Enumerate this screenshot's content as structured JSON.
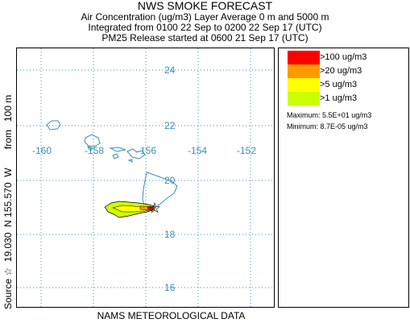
{
  "header": {
    "title": "NWS SMOKE FORECAST",
    "line2": "Air Concentration (ug/m3) Layer Average    0 m and  5000 m",
    "line3": "Integrated from 0100 22 Sep to 0200 22 Sep 17 (UTC)",
    "line4": "PM25 Release started at 0600 21 Sep 17 (UTC)"
  },
  "map": {
    "latitude_labels": [
      "24",
      "22",
      "20",
      "18",
      "16"
    ],
    "longitude_labels": [
      "-160",
      "-158",
      "-156",
      "-154",
      "-152"
    ],
    "grid_color": "#3a8fb5",
    "coast_color": "#3a8fb5",
    "source_symbol": "star",
    "source_text": "Source ☆  19.030  N 155.570  W       from   100 m",
    "footer": "NAMS METEOROLOGICAL DATA"
  },
  "legend": {
    "entries": [
      {
        "label": ">100 ug/m3",
        "color": "#ff0000"
      },
      {
        "label": ">20 ug/m3",
        "color": "#ff9900"
      },
      {
        "label": ">5 ug/m3",
        "color": "#ffff00"
      },
      {
        "label": ">1 ug/m3",
        "color": "#ccff00"
      }
    ],
    "maximum": "Maximum:  5.5E+01 ug/m3",
    "minimum": "Minimum:  8.7E-05 ug/m3"
  }
}
